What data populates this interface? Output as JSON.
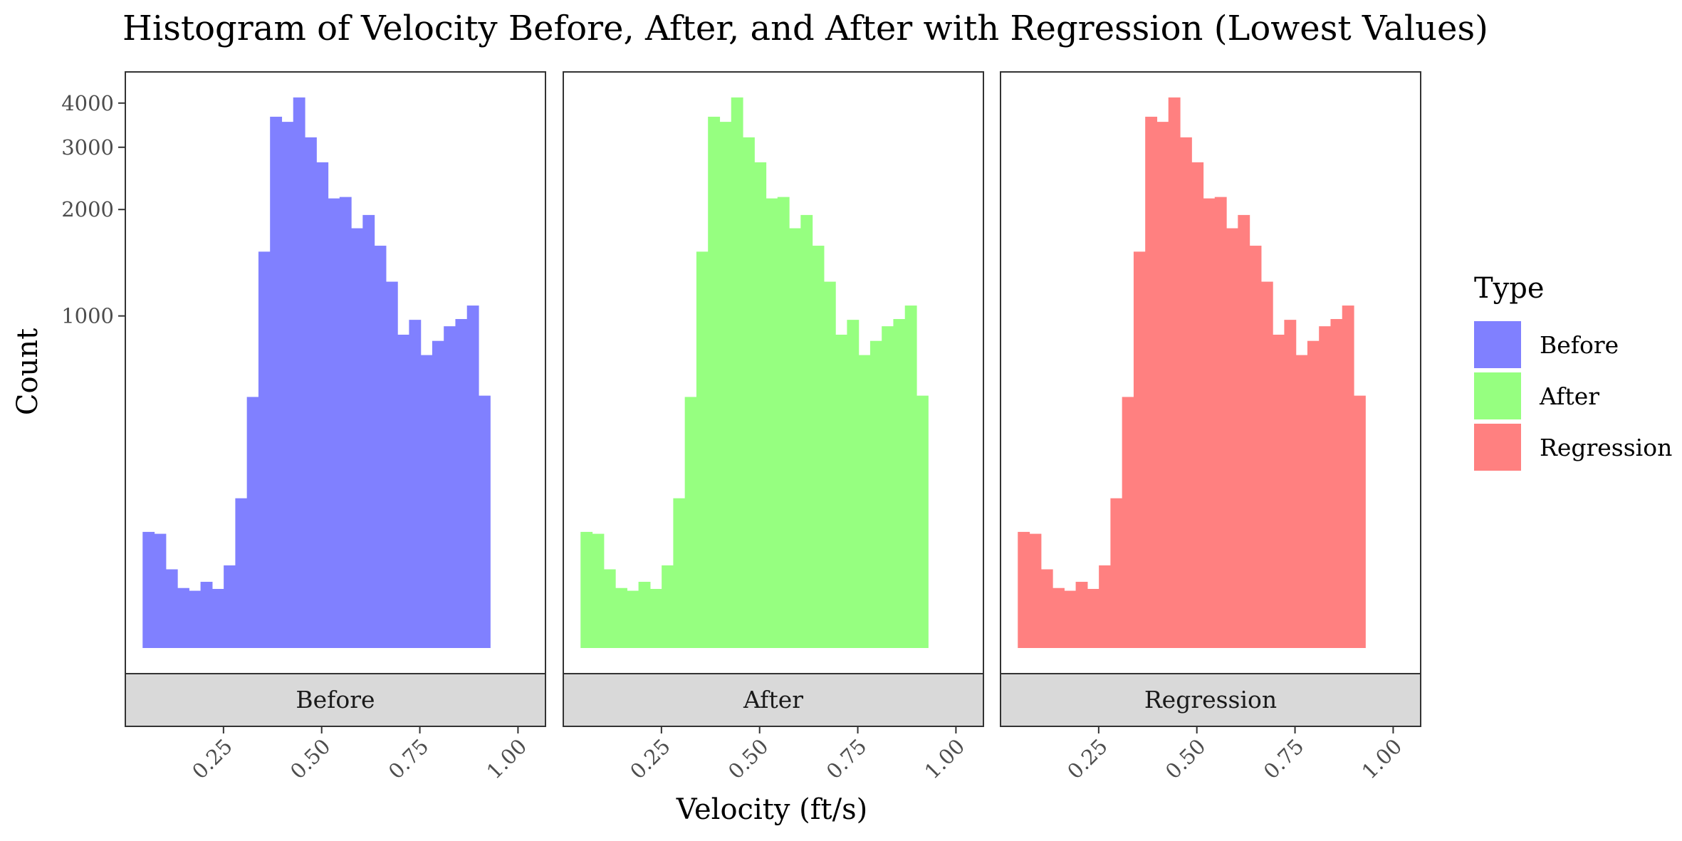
{
  "chart_data": {
    "type": "bar",
    "title": "Histogram of Velocity Before, After, and After with Regression (Lowest Values)",
    "xlabel": "Velocity (ft/s)",
    "ylabel": "Count",
    "y_scale": "log",
    "x_ticks": [
      "0.25",
      "0.50",
      "0.75",
      "1.00"
    ],
    "x_tick_values": [
      0.25,
      0.5,
      0.75,
      1.0
    ],
    "y_ticks": [
      "1000",
      "2000",
      "3000",
      "4000"
    ],
    "y_tick_values": [
      1000,
      2000,
      3000,
      4000
    ],
    "xlim": [
      0.0,
      1.07
    ],
    "ylim": [
      115,
      4900
    ],
    "grid": false,
    "legend": {
      "title": "Type",
      "position": "right",
      "entries": [
        {
          "label": "Before",
          "color": "#8080ff"
        },
        {
          "label": "After",
          "color": "#96ff80"
        },
        {
          "label": "Regression",
          "color": "#ff8080"
        }
      ]
    },
    "bins": {
      "start": 0.044,
      "width": 0.0295,
      "counts": [
        245,
        242,
        192,
        170,
        167,
        177,
        169,
        197,
        305,
        590,
        1520,
        3660,
        3540,
        4150,
        3200,
        2720,
        2150,
        2170,
        1770,
        1930,
        1580,
        1250,
        885,
        975,
        775,
        850,
        935,
        980,
        1070,
        595
      ]
    },
    "panels": [
      {
        "strip_label": "Before",
        "color": "#8080ff"
      },
      {
        "strip_label": "After",
        "color": "#96ff80"
      },
      {
        "strip_label": "Regression",
        "color": "#ff8080"
      }
    ]
  }
}
